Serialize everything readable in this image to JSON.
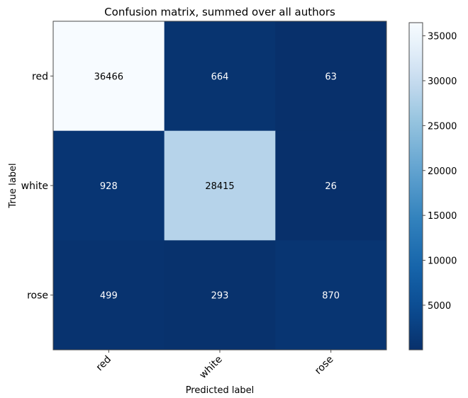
{
  "chart_data": {
    "type": "heatmap",
    "title": "Confusion matrix, summed over all authors",
    "xlabel": "Predicted label",
    "ylabel": "True label",
    "x_categories": [
      "red",
      "white",
      "rose"
    ],
    "y_categories": [
      "red",
      "white",
      "rose"
    ],
    "values": [
      [
        36466,
        664,
        63
      ],
      [
        928,
        28415,
        26
      ],
      [
        499,
        293,
        870
      ]
    ],
    "colorbar": {
      "colormap": "Blues",
      "range": [
        26,
        36466
      ],
      "ticks": [
        5000,
        10000,
        15000,
        20000,
        25000,
        30000,
        35000
      ]
    },
    "grid": false
  }
}
